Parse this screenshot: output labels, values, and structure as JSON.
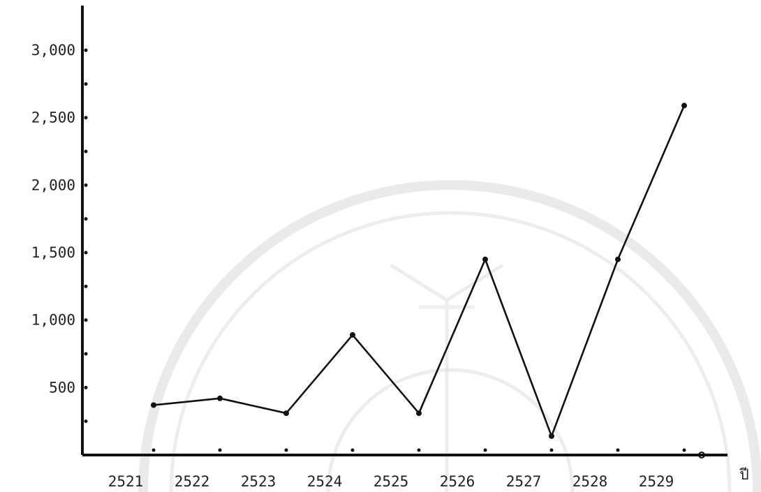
{
  "chart_data": {
    "type": "line",
    "x": [
      "2521",
      "2522",
      "2523",
      "2524",
      "2525",
      "2526",
      "2527",
      "2528",
      "2529"
    ],
    "series": [
      {
        "values": [
          370,
          420,
          310,
          890,
          310,
          1450,
          140,
          1450,
          2590
        ]
      }
    ],
    "xlabel": "ปี",
    "ylabel": "",
    "ylim": [
      0,
      3000
    ],
    "yticks": [
      500,
      1000,
      1500,
      2000,
      2500,
      3000
    ],
    "ytick_labels": [
      "500",
      "1,000",
      "1,500",
      "2,000",
      "2,500",
      "3,000"
    ],
    "grid": false,
    "legend": "none",
    "colors": {
      "line": "#111111",
      "axis": "#111111",
      "watermark": "#d8d8d8"
    }
  }
}
